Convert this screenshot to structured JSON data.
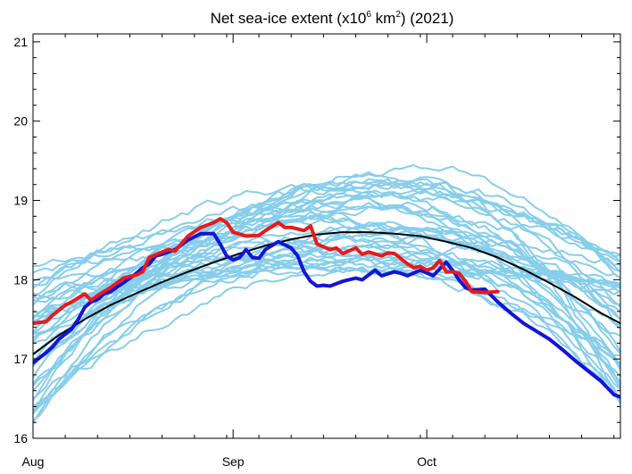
{
  "chart_data": {
    "type": "line",
    "title_main": "Net sea-ice extent (x10",
    "title_sup1": "6",
    "title_mid": " km",
    "title_sup2": "2",
    "title_end": ") (2021)",
    "xlabel": "",
    "ylabel": "",
    "xlim": [
      0,
      91
    ],
    "ylim": [
      16,
      21.1
    ],
    "x_ticks": [
      {
        "value": 0,
        "label": "Aug"
      },
      {
        "value": 31,
        "label": "Sep"
      },
      {
        "value": 61,
        "label": "Oct"
      }
    ],
    "y_ticks": [
      {
        "value": 16,
        "label": "16"
      },
      {
        "value": 17,
        "label": "17"
      },
      {
        "value": 18,
        "label": "18"
      },
      {
        "value": 19,
        "label": "19"
      },
      {
        "value": 20,
        "label": "20"
      },
      {
        "value": 21,
        "label": "21"
      }
    ],
    "colors": {
      "historical": "#87CEEB",
      "mean": "#000000",
      "highlight_red": "#e81a1a",
      "highlight_blue": "#1414d8"
    },
    "background_series_generator": {
      "count": 40,
      "peak_range": [
        18.1,
        19.4
      ],
      "start_range": [
        16.2,
        18.2
      ],
      "end_range": [
        16.4,
        18.5
      ]
    },
    "series": [
      {
        "name": "mean",
        "color": "#000000",
        "x": [
          0,
          4,
          8,
          12,
          16,
          20,
          24,
          28,
          32,
          36,
          40,
          44,
          48,
          52,
          56,
          60,
          64,
          68,
          72,
          76,
          80,
          84,
          88,
          91
        ],
        "values": [
          17.06,
          17.3,
          17.5,
          17.68,
          17.83,
          17.97,
          18.1,
          18.22,
          18.33,
          18.43,
          18.51,
          18.57,
          18.6,
          18.6,
          18.58,
          18.55,
          18.48,
          18.4,
          18.28,
          18.13,
          17.96,
          17.78,
          17.58,
          17.45
        ]
      },
      {
        "name": "red-series",
        "color": "#e81a1a",
        "x": [
          0,
          2,
          3,
          5,
          6,
          8,
          9,
          10,
          12,
          14,
          16,
          17,
          18,
          20,
          21,
          22,
          24,
          26,
          28,
          29,
          30,
          31,
          33,
          35,
          36,
          38,
          39,
          40,
          42,
          43,
          44,
          46,
          47,
          48,
          50,
          51,
          52,
          54,
          55,
          56,
          58,
          59,
          60,
          61,
          62,
          63,
          64,
          65,
          66,
          67,
          68,
          70,
          72
        ],
        "values": [
          17.45,
          17.47,
          17.55,
          17.68,
          17.72,
          17.82,
          17.74,
          17.8,
          17.9,
          18.02,
          18.06,
          18.1,
          18.28,
          18.35,
          18.38,
          18.36,
          18.55,
          18.66,
          18.72,
          18.77,
          18.72,
          18.6,
          18.55,
          18.56,
          18.62,
          18.72,
          18.66,
          18.66,
          18.62,
          18.68,
          18.45,
          18.38,
          18.4,
          18.33,
          18.4,
          18.32,
          18.35,
          18.3,
          18.34,
          18.33,
          18.2,
          18.15,
          18.17,
          18.12,
          18.15,
          18.24,
          18.1,
          18.1,
          18.08,
          17.98,
          17.85,
          17.84,
          17.85
        ]
      },
      {
        "name": "blue-series",
        "color": "#1414d8",
        "x": [
          0,
          2,
          3,
          4,
          6,
          7,
          8,
          9,
          10,
          11,
          12,
          14,
          15,
          16,
          17,
          18,
          19,
          20,
          22,
          24,
          26,
          28,
          29,
          30,
          31,
          32,
          33,
          34,
          35,
          36,
          38,
          40,
          41,
          42,
          43,
          44,
          45,
          46,
          48,
          50,
          51,
          52,
          53,
          54,
          56,
          57,
          58,
          60,
          62,
          64,
          65,
          66,
          67,
          68,
          70,
          72,
          74,
          76,
          78,
          80,
          82,
          84,
          86,
          88,
          90,
          91
        ],
        "values": [
          16.95,
          17.08,
          17.15,
          17.25,
          17.38,
          17.5,
          17.65,
          17.72,
          17.75,
          17.82,
          17.85,
          17.96,
          18.02,
          18.08,
          18.15,
          18.2,
          18.3,
          18.32,
          18.38,
          18.5,
          18.58,
          18.58,
          18.45,
          18.3,
          18.25,
          18.28,
          18.38,
          18.28,
          18.27,
          18.38,
          18.48,
          18.4,
          18.3,
          18.1,
          17.98,
          17.92,
          17.93,
          17.92,
          17.98,
          18.02,
          18.0,
          18.06,
          18.12,
          18.05,
          18.1,
          18.08,
          18.05,
          18.12,
          18.05,
          18.22,
          18.12,
          18.0,
          17.9,
          17.87,
          17.88,
          17.72,
          17.58,
          17.45,
          17.35,
          17.25,
          17.12,
          16.98,
          16.85,
          16.72,
          16.55,
          16.52
        ]
      }
    ]
  }
}
